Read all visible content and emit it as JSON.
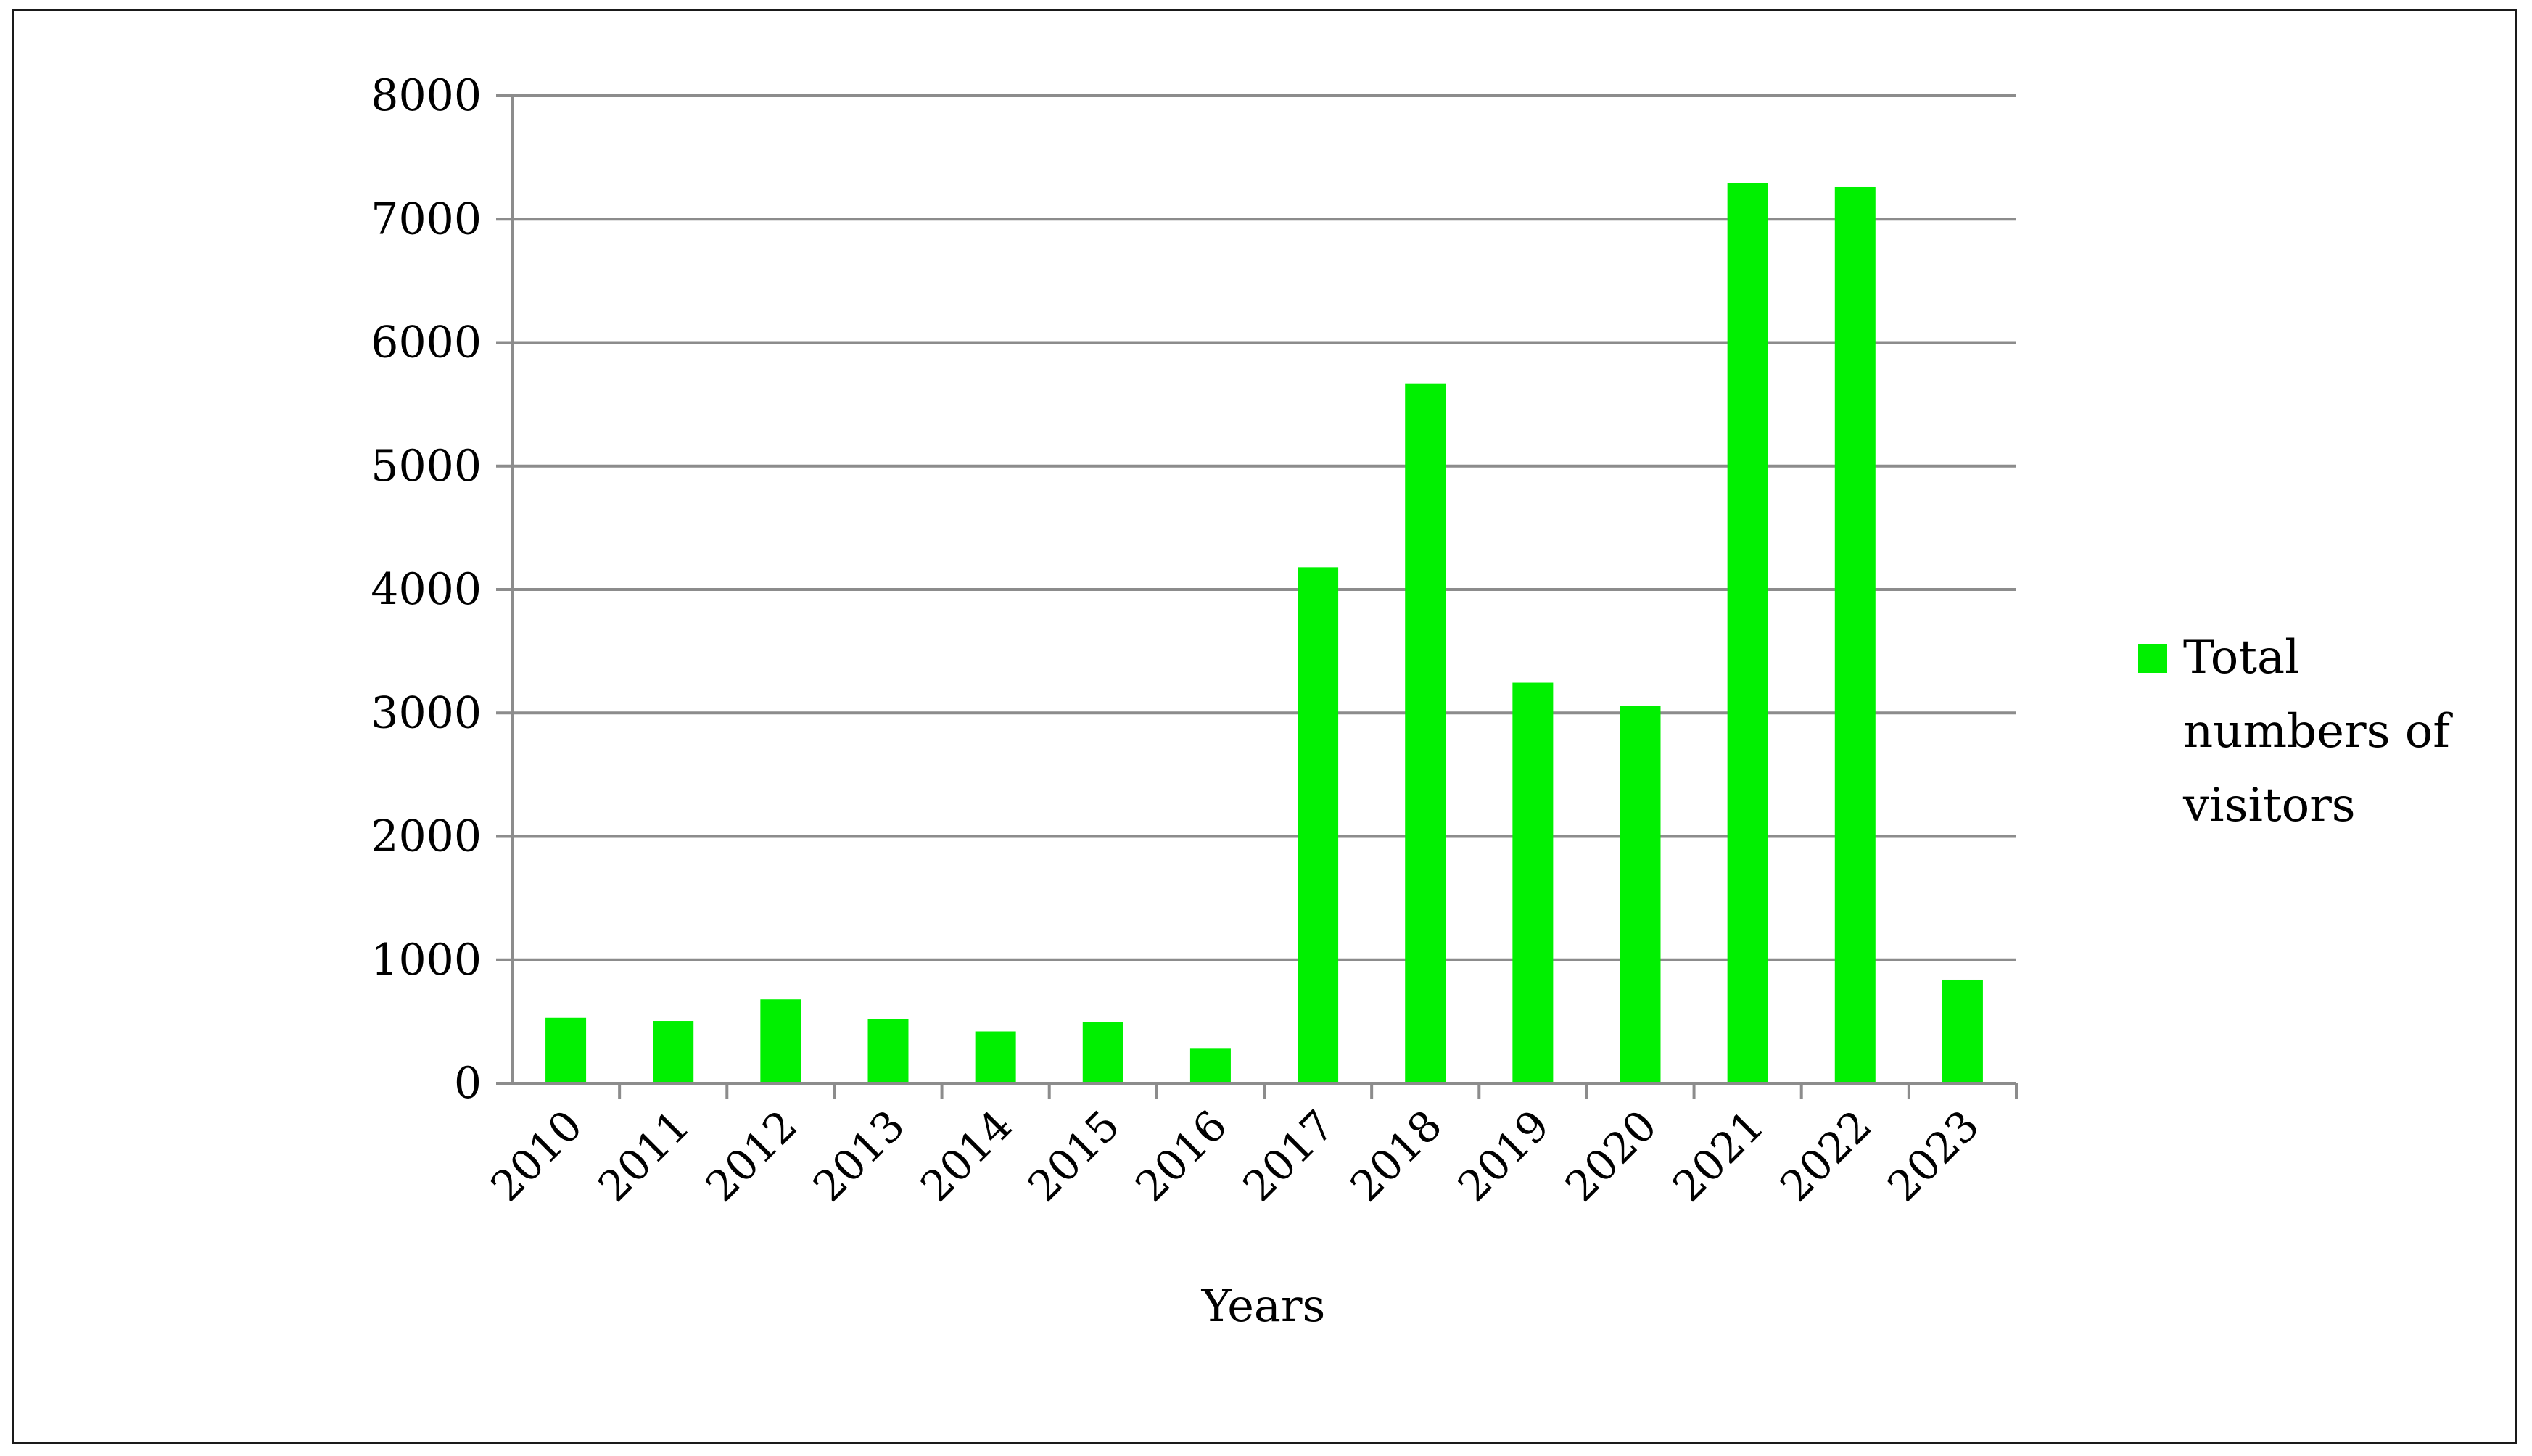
{
  "chart_data": {
    "type": "bar",
    "categories": [
      "2010",
      "2011",
      "2012",
      "2013",
      "2014",
      "2015",
      "2016",
      "2017",
      "2018",
      "2019",
      "2020",
      "2021",
      "2022",
      "2023"
    ],
    "series": [
      {
        "name": "Total numbers of visitors",
        "values": [
          530,
          505,
          680,
          520,
          420,
          495,
          280,
          4180,
          5670,
          3245,
          3055,
          7290,
          7260,
          840
        ]
      }
    ],
    "title": "",
    "xlabel": "Years",
    "ylabel": "",
    "ylim": [
      0,
      8000
    ],
    "yticks": [
      0,
      1000,
      2000,
      3000,
      4000,
      5000,
      6000,
      7000,
      8000
    ],
    "grid": true,
    "legend_position": "right",
    "legend_lines": [
      "Total",
      "numbers of",
      "visitors"
    ],
    "bar_color": "#00f000",
    "grid_color": "#8c8c8c"
  }
}
